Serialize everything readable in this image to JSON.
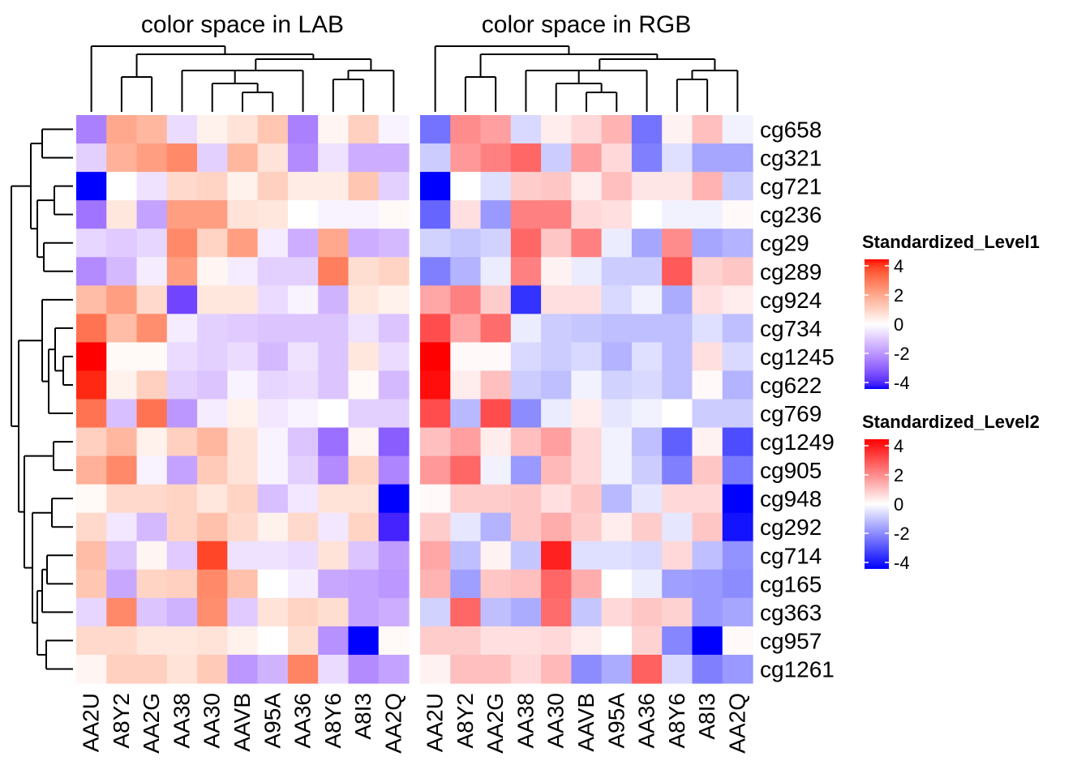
{
  "chart_data": {
    "type": "heatmap",
    "panels": [
      {
        "title": "color space in LAB",
        "legend": 0
      },
      {
        "title": "color space in RGB",
        "legend": 1
      }
    ],
    "columns": [
      "AA2U",
      "A8Y2",
      "AA2G",
      "AA38",
      "AA30",
      "AAVB",
      "A95A",
      "AA36",
      "A8Y6",
      "A8I3",
      "AA2Q"
    ],
    "rows": [
      "cg658",
      "cg321",
      "cg721",
      "cg236",
      "cg29",
      "cg289",
      "cg924",
      "cg734",
      "cg1245",
      "cg622",
      "cg769",
      "cg1249",
      "cg905",
      "cg948",
      "cg292",
      "cg714",
      "cg165",
      "cg363",
      "cg957",
      "cg1261"
    ],
    "values": [
      [
        -2.2,
        1.8,
        1.5,
        -0.6,
        0.3,
        0.6,
        1.2,
        -2.2,
        0.2,
        1.0,
        -0.2
      ],
      [
        -0.8,
        1.6,
        2.0,
        2.4,
        -0.8,
        1.5,
        0.6,
        -2.0,
        -0.5,
        -1.4,
        -1.4
      ],
      [
        -4.0,
        0.0,
        -0.5,
        0.8,
        0.9,
        0.3,
        1.0,
        0.4,
        0.4,
        1.2,
        -0.8
      ],
      [
        -2.4,
        0.5,
        -1.6,
        2.0,
        2.0,
        0.6,
        0.5,
        0.0,
        -0.2,
        -0.2,
        0.1
      ],
      [
        -0.7,
        -0.9,
        -0.7,
        2.4,
        0.9,
        2.0,
        -0.3,
        -1.4,
        1.8,
        -1.4,
        -1.2
      ],
      [
        -2.0,
        -1.2,
        -0.3,
        2.0,
        0.2,
        -0.3,
        -0.8,
        -0.8,
        2.6,
        0.7,
        0.9
      ],
      [
        1.4,
        2.0,
        0.8,
        -3.2,
        0.5,
        0.5,
        -0.6,
        -0.2,
        -1.3,
        0.5,
        0.3
      ],
      [
        2.8,
        1.4,
        2.3,
        -0.3,
        -0.8,
        -0.9,
        -1.0,
        -1.0,
        -1.0,
        -0.5,
        -1.0
      ],
      [
        4.2,
        0.1,
        0.1,
        -0.6,
        -0.8,
        -0.6,
        -1.2,
        -0.5,
        -1.0,
        0.5,
        -0.6
      ],
      [
        3.8,
        0.3,
        1.0,
        -0.8,
        -1.0,
        -0.2,
        -0.7,
        -0.6,
        -1.0,
        0.1,
        -1.2
      ],
      [
        2.8,
        -1.1,
        2.8,
        -1.8,
        -0.3,
        0.3,
        -0.4,
        -0.2,
        0.0,
        -0.8,
        -0.8
      ],
      [
        1.0,
        1.5,
        0.3,
        1.0,
        1.5,
        0.6,
        -0.2,
        -1.0,
        -2.5,
        0.2,
        -2.8
      ],
      [
        1.6,
        2.4,
        -0.2,
        -1.6,
        1.1,
        0.6,
        -0.2,
        -0.8,
        -2.0,
        0.9,
        -2.1
      ],
      [
        0.1,
        0.8,
        0.8,
        0.9,
        0.5,
        0.9,
        -1.1,
        -0.4,
        0.6,
        0.6,
        -4.3
      ],
      [
        0.8,
        -0.4,
        -1.2,
        0.9,
        1.3,
        0.8,
        0.3,
        0.8,
        -0.4,
        0.9,
        -3.7
      ],
      [
        1.4,
        -1.0,
        0.2,
        -0.9,
        3.5,
        -0.5,
        -0.5,
        -0.6,
        0.6,
        -1.0,
        -1.7
      ],
      [
        1.2,
        -1.5,
        0.9,
        1.0,
        2.4,
        1.3,
        0.0,
        -0.3,
        -1.5,
        -1.6,
        -1.8
      ],
      [
        -0.7,
        2.4,
        -1.0,
        -1.3,
        2.3,
        -0.9,
        0.6,
        0.9,
        0.7,
        -1.6,
        -1.4
      ],
      [
        0.8,
        0.8,
        0.5,
        0.5,
        0.6,
        0.3,
        0.0,
        0.7,
        -1.9,
        -4.0,
        0.1
      ],
      [
        0.2,
        1.0,
        1.0,
        0.6,
        1.1,
        -1.8,
        -1.3,
        2.5,
        -0.6,
        -2.0,
        -1.6
      ]
    ],
    "legends": [
      {
        "title": "Standardized_Level1",
        "ticks": [
          4,
          2,
          0,
          -2,
          -4
        ],
        "colors": [
          "#ff0000",
          "#ffffff",
          "#0000ff"
        ]
      },
      {
        "title": "Standardized_Level2",
        "ticks": [
          4,
          2,
          0,
          -2,
          -4
        ],
        "colors": [
          "#ff0000",
          "#ffffff",
          "#0000ff"
        ]
      }
    ],
    "panel_color_spaces": [
      "LAB",
      "RGB"
    ],
    "range": [
      -4,
      4
    ],
    "row_dendrogram": true,
    "column_dendrogram": true
  }
}
